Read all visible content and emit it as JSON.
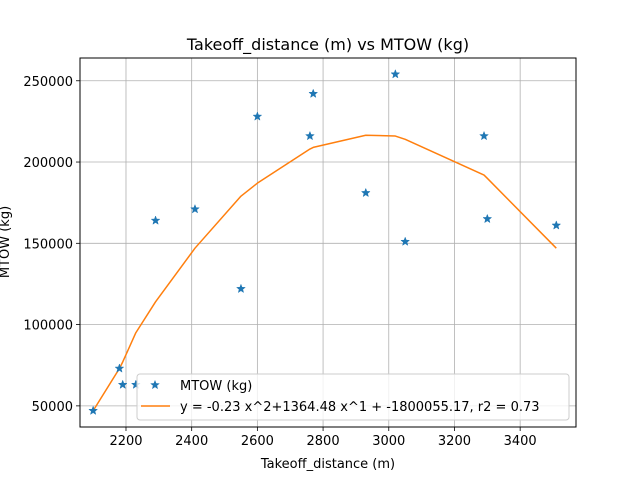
{
  "chart_data": {
    "type": "scatter",
    "title": "Takeoff_distance (m) vs MTOW (kg)",
    "xlabel": "Takeoff_distance (m)",
    "ylabel": "MTOW (kg)",
    "xlim": [
      2060,
      3570
    ],
    "ylim": [
      37000,
      264000
    ],
    "xticks": [
      2200,
      2400,
      2600,
      2800,
      3000,
      3200,
      3400
    ],
    "yticks": [
      50000,
      100000,
      150000,
      200000,
      250000
    ],
    "grid": true,
    "legend_position": "lower-center",
    "series": [
      {
        "name": "MTOW (kg)",
        "kind": "scatter",
        "marker": "star",
        "color": "#1f77b4",
        "points": [
          [
            2100,
            47000
          ],
          [
            2180,
            73000
          ],
          [
            2190,
            63000
          ],
          [
            2230,
            63000
          ],
          [
            2290,
            164000
          ],
          [
            2410,
            171000
          ],
          [
            2550,
            122000
          ],
          [
            2600,
            228000
          ],
          [
            2760,
            216000
          ],
          [
            2770,
            242000
          ],
          [
            2930,
            181000
          ],
          [
            3020,
            254000
          ],
          [
            3050,
            151000
          ],
          [
            3290,
            216000
          ],
          [
            3300,
            165000
          ],
          [
            3510,
            161000
          ]
        ]
      },
      {
        "name": "y = -0.23 x^2+1364.48 x^1 + -1800055.17, r2 = 0.73",
        "kind": "line",
        "color": "#ff7f0e",
        "points": [
          [
            2100,
            47000
          ],
          [
            2180,
            73000
          ],
          [
            2190,
            77000
          ],
          [
            2230,
            95000
          ],
          [
            2290,
            114000
          ],
          [
            2410,
            147000
          ],
          [
            2550,
            179000
          ],
          [
            2600,
            187000
          ],
          [
            2760,
            208000
          ],
          [
            2770,
            209000
          ],
          [
            2930,
            216500
          ],
          [
            3020,
            216000
          ],
          [
            3050,
            214000
          ],
          [
            3290,
            192000
          ],
          [
            3300,
            190000
          ],
          [
            3510,
            147000
          ]
        ]
      }
    ]
  }
}
